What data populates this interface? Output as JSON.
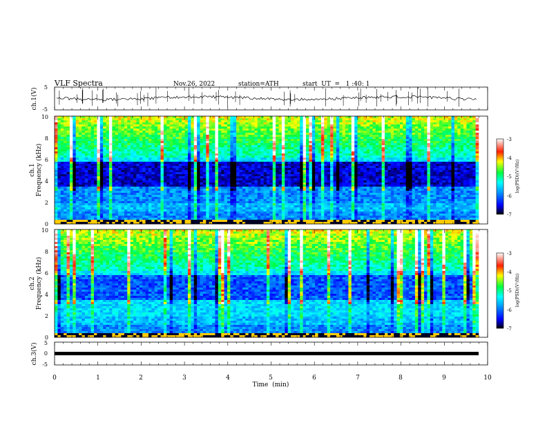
{
  "header": {
    "title": "VLF  Spectra",
    "date": "Nov.26, 2022",
    "station": "station=ATH",
    "start_time": "start  UT  =   1 :40: 1"
  },
  "chart_data": [
    {
      "type": "line",
      "panel": "ch1-waveform",
      "ylabel": "ch.1(V)",
      "ylim": [
        -5,
        5
      ],
      "yticks": [
        "5",
        "-5"
      ],
      "xlim": [
        0,
        10
      ]
    },
    {
      "type": "heatmap",
      "panel": "ch1-spectrogram",
      "ylabel_top": "ch.1",
      "ylabel": "Frequency  (kHz)",
      "ylim": [
        0,
        10
      ],
      "yticks": [
        "0",
        "2",
        "4",
        "6",
        "8",
        "10"
      ],
      "xlim": [
        0,
        10
      ],
      "data_extent_x": [
        0,
        9.8
      ],
      "colorbar": {
        "label": "log(PSD)(V²/Hz)",
        "range": [
          -7,
          -3
        ],
        "ticks": [
          "-3",
          "-4",
          "-5",
          "-6",
          "-7"
        ]
      }
    },
    {
      "type": "heatmap",
      "panel": "ch2-spectrogram",
      "ylabel_top": "ch.2",
      "ylabel": "Frequency  (kHz)",
      "ylim": [
        0,
        10
      ],
      "yticks": [
        "0",
        "2",
        "4",
        "6",
        "8",
        "10"
      ],
      "xlim": [
        0,
        10
      ],
      "data_extent_x": [
        0,
        9.8
      ],
      "colorbar": {
        "label": "log(PSD)(V²/Hz)",
        "range": [
          -7,
          -3
        ],
        "ticks": [
          "-3",
          "-4",
          "-5",
          "-6",
          "-7"
        ]
      }
    },
    {
      "type": "line",
      "panel": "ch3-waveform",
      "ylabel": "ch.3(V)",
      "ylim": [
        -5,
        5
      ],
      "yticks": [
        "5",
        "0",
        "-5"
      ],
      "xlim": [
        0,
        10
      ],
      "xlabel": "Time  (min)",
      "xticks": [
        "0",
        "1",
        "2",
        "3",
        "4",
        "5",
        "6",
        "7",
        "8",
        "9",
        "10"
      ]
    }
  ]
}
